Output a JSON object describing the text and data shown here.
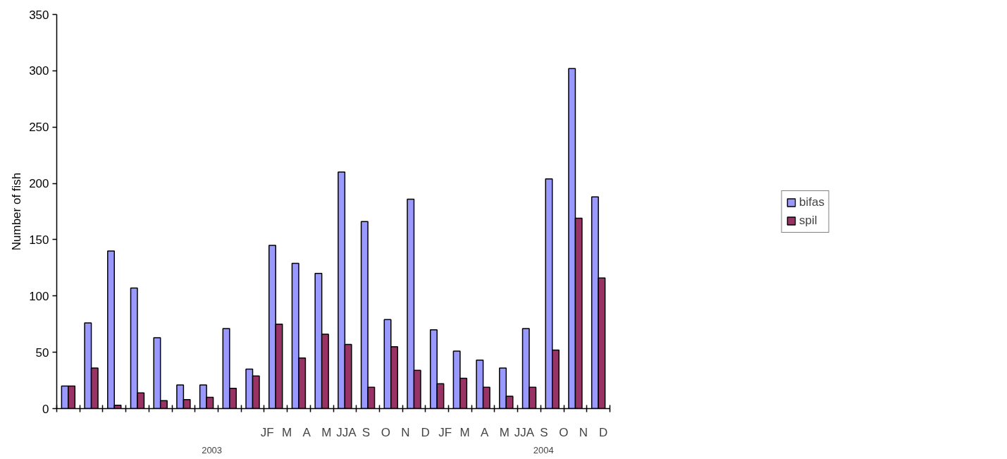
{
  "chart_data": {
    "type": "bar",
    "ylabel": "Number of fish",
    "categories": [
      null,
      null,
      null,
      null,
      null,
      null,
      null,
      null,
      null,
      null,
      null,
      null,
      null,
      null,
      null,
      null,
      null,
      null,
      null,
      null,
      null,
      null,
      null,
      null
    ],
    "series": [
      {
        "name": "bifas",
        "color": "#9999ff",
        "values": [
          20,
          76,
          140,
          107,
          63,
          21,
          21,
          71,
          35,
          145,
          129,
          120,
          210,
          166,
          79,
          186,
          70,
          51,
          43,
          36,
          71,
          204,
          302,
          188
        ]
      },
      {
        "name": "spil",
        "color": "#993366",
        "values": [
          20,
          36,
          3,
          14,
          7,
          8,
          10,
          18,
          29,
          75,
          45,
          66,
          57,
          19,
          55,
          34,
          22,
          27,
          19,
          11,
          19,
          52,
          169,
          116
        ]
      }
    ],
    "annotations": [
      "JF",
      "M",
      "A",
      "M",
      "JJA",
      "S",
      "O",
      "N",
      "D",
      "JF",
      "M",
      "A",
      "M",
      "JJA",
      "S",
      "O",
      "N",
      "D",
      "2003",
      "2004"
    ],
    "ylim": [
      0,
      350
    ],
    "yticks": [
      0,
      50,
      100,
      150,
      200,
      250,
      300,
      350
    ],
    "grid": false,
    "legend": "right"
  }
}
